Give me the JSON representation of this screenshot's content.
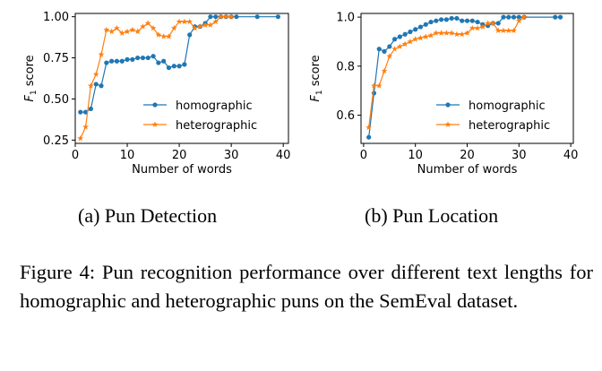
{
  "chart_data": [
    {
      "type": "line",
      "xlabel": "Number of words",
      "ylabel": "F1 score",
      "xlim": [
        0,
        41
      ],
      "ylim": [
        0.23,
        1.02
      ],
      "xticks": [
        0,
        10,
        20,
        30,
        40
      ],
      "yticks": [
        0.25,
        0.5,
        0.75,
        1.0
      ],
      "ytick_labels": [
        "0.25",
        "0.50",
        "0.75",
        "1.00"
      ],
      "legend": "center-right",
      "grid": false,
      "series": [
        {
          "name": "homographic",
          "color": "#1f77b4",
          "marker": "circle",
          "x": [
            1,
            2,
            3,
            4,
            5,
            6,
            7,
            8,
            9,
            10,
            11,
            12,
            13,
            14,
            15,
            16,
            17,
            18,
            19,
            20,
            21,
            22,
            23,
            24,
            25,
            26,
            27,
            28,
            29,
            30,
            31,
            35,
            39
          ],
          "y": [
            0.42,
            0.42,
            0.44,
            0.59,
            0.58,
            0.72,
            0.73,
            0.73,
            0.73,
            0.74,
            0.74,
            0.75,
            0.75,
            0.75,
            0.76,
            0.72,
            0.73,
            0.69,
            0.7,
            0.7,
            0.71,
            0.89,
            0.94,
            0.94,
            0.96,
            1.0,
            1.0,
            1.0,
            1.0,
            1.0,
            1.0,
            1.0,
            1.0
          ]
        },
        {
          "name": "heterographic",
          "color": "#ff7f0e",
          "marker": "star",
          "x": [
            1,
            2,
            3,
            4,
            5,
            6,
            7,
            8,
            9,
            10,
            11,
            12,
            13,
            14,
            15,
            16,
            17,
            18,
            19,
            20,
            21,
            22,
            23,
            24,
            25,
            26,
            27,
            28,
            29,
            30
          ],
          "y": [
            0.26,
            0.33,
            0.58,
            0.65,
            0.77,
            0.92,
            0.91,
            0.93,
            0.9,
            0.91,
            0.92,
            0.91,
            0.94,
            0.96,
            0.93,
            0.89,
            0.88,
            0.88,
            0.93,
            0.97,
            0.97,
            0.97,
            0.93,
            0.94,
            0.95,
            0.95,
            0.97,
            1.0,
            1.0,
            1.0
          ]
        }
      ]
    },
    {
      "type": "line",
      "xlabel": "Number of words",
      "ylabel": "F1 score",
      "xlim": [
        -0.5,
        40.5
      ],
      "ylim": [
        0.485,
        1.015
      ],
      "xticks": [
        0,
        10,
        20,
        30,
        40
      ],
      "yticks": [
        0.6,
        0.8,
        1.0
      ],
      "ytick_labels": [
        "0.6",
        "0.8",
        "1.0"
      ],
      "legend": "lower-right",
      "grid": false,
      "series": [
        {
          "name": "homographic",
          "color": "#1f77b4",
          "marker": "circle",
          "x": [
            1,
            2,
            3,
            4,
            5,
            6,
            7,
            8,
            9,
            10,
            11,
            12,
            13,
            14,
            15,
            16,
            17,
            18,
            19,
            20,
            21,
            22,
            23,
            24,
            25,
            26,
            27,
            28,
            29,
            30,
            31,
            37,
            38
          ],
          "y": [
            0.51,
            0.69,
            0.87,
            0.86,
            0.88,
            0.91,
            0.92,
            0.93,
            0.94,
            0.95,
            0.96,
            0.97,
            0.98,
            0.985,
            0.99,
            0.99,
            0.995,
            0.995,
            0.985,
            0.985,
            0.985,
            0.98,
            0.97,
            0.965,
            0.975,
            0.975,
            1.0,
            1.0,
            1.0,
            1.0,
            1.0,
            1.0,
            1.0
          ]
        },
        {
          "name": "heterographic",
          "color": "#ff7f0e",
          "marker": "star",
          "x": [
            1,
            2,
            3,
            4,
            5,
            6,
            7,
            8,
            9,
            10,
            11,
            12,
            13,
            14,
            15,
            16,
            17,
            18,
            19,
            20,
            21,
            22,
            23,
            24,
            25,
            26,
            27,
            28,
            29,
            30,
            31
          ],
          "y": [
            0.55,
            0.72,
            0.72,
            0.78,
            0.84,
            0.87,
            0.88,
            0.89,
            0.9,
            0.91,
            0.915,
            0.92,
            0.925,
            0.935,
            0.935,
            0.935,
            0.935,
            0.93,
            0.93,
            0.935,
            0.955,
            0.955,
            0.96,
            0.975,
            0.975,
            0.945,
            0.945,
            0.945,
            0.945,
            0.985,
            1.0
          ]
        }
      ]
    }
  ],
  "subcaptions": [
    "(a) Pun Detection",
    "(b) Pun Location"
  ],
  "figure_caption": "Figure 4: Pun recognition performance over different text lengths for homographic and heterographic puns on the SemEval dataset."
}
